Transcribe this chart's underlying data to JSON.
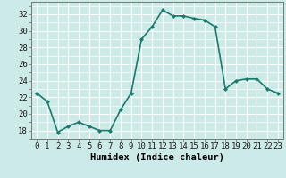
{
  "x": [
    0,
    1,
    2,
    3,
    4,
    5,
    6,
    7,
    8,
    9,
    10,
    11,
    12,
    13,
    14,
    15,
    16,
    17,
    18,
    19,
    20,
    21,
    22,
    23
  ],
  "y": [
    22.5,
    21.5,
    17.8,
    18.5,
    19.0,
    18.5,
    18.0,
    18.0,
    20.5,
    22.5,
    29.0,
    30.5,
    32.5,
    31.8,
    31.8,
    31.5,
    31.3,
    30.5,
    23.0,
    24.0,
    24.2,
    24.2,
    23.0,
    22.5
  ],
  "line_color": "#1a7a6e",
  "marker": "D",
  "marker_size": 2,
  "bg_color": "#cceae7",
  "grid_color": "#ffffff",
  "xlabel": "Humidex (Indice chaleur)",
  "ylabel": "",
  "xlim": [
    -0.5,
    23.5
  ],
  "ylim": [
    17.0,
    33.5
  ],
  "yticks": [
    18,
    20,
    22,
    24,
    26,
    28,
    30,
    32
  ],
  "xticks": [
    0,
    1,
    2,
    3,
    4,
    5,
    6,
    7,
    8,
    9,
    10,
    11,
    12,
    13,
    14,
    15,
    16,
    17,
    18,
    19,
    20,
    21,
    22,
    23
  ],
  "xtick_labels": [
    "0",
    "1",
    "2",
    "3",
    "4",
    "5",
    "6",
    "7",
    "8",
    "9",
    "10",
    "11",
    "12",
    "13",
    "14",
    "15",
    "16",
    "17",
    "18",
    "19",
    "20",
    "21",
    "22",
    "23"
  ],
  "tick_fontsize": 6.5,
  "xlabel_fontsize": 7.5,
  "linewidth": 1.2
}
